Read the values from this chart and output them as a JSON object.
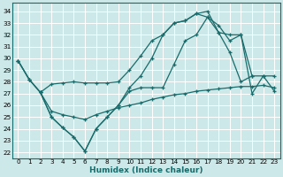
{
  "xlabel": "Humidex (Indice chaleur)",
  "bg_color": "#cce8e8",
  "grid_color": "#ffffff",
  "line_color": "#1a6b6b",
  "xlim": [
    -0.5,
    23.5
  ],
  "ylim": [
    21.5,
    34.7
  ],
  "yticks": [
    22,
    23,
    24,
    25,
    26,
    27,
    28,
    29,
    30,
    31,
    32,
    33,
    34
  ],
  "xticks": [
    0,
    1,
    2,
    3,
    4,
    5,
    6,
    7,
    8,
    9,
    10,
    11,
    12,
    13,
    14,
    15,
    16,
    17,
    18,
    19,
    20,
    21,
    22,
    23
  ],
  "series1_x": [
    0,
    1,
    2,
    3,
    4,
    5,
    6,
    7,
    8,
    9,
    10,
    11,
    12,
    13,
    14,
    15,
    16,
    17,
    18,
    19,
    20,
    21
  ],
  "series1_y": [
    29.8,
    28.2,
    27.1,
    27.8,
    27.9,
    28.0,
    27.9,
    27.9,
    27.9,
    28.0,
    29.0,
    30.2,
    31.5,
    32.0,
    33.0,
    33.2,
    33.8,
    33.5,
    32.2,
    32.0,
    32.0,
    28.5
  ],
  "series2_x": [
    0,
    1,
    2,
    3,
    4,
    5,
    6,
    7,
    8,
    9,
    10,
    11,
    12,
    13,
    14,
    15,
    16,
    17,
    18,
    19,
    20,
    21,
    22,
    23
  ],
  "series2_y": [
    29.8,
    28.2,
    27.1,
    25.0,
    24.1,
    23.3,
    22.1,
    24.0,
    25.0,
    26.0,
    27.5,
    28.5,
    30.0,
    32.0,
    33.0,
    33.2,
    33.8,
    34.0,
    32.2,
    30.5,
    28.0,
    28.5,
    28.5,
    28.5
  ],
  "series3_x": [
    2,
    3,
    4,
    5,
    6,
    7,
    8,
    9,
    10,
    11,
    12,
    13,
    14,
    15,
    16,
    17,
    18,
    19,
    20,
    21,
    22,
    23
  ],
  "series3_y": [
    27.1,
    25.0,
    24.1,
    23.3,
    22.1,
    24.0,
    25.0,
    26.0,
    27.2,
    27.5,
    27.5,
    27.5,
    29.5,
    31.5,
    32.0,
    33.5,
    32.8,
    31.5,
    32.0,
    27.0,
    28.5,
    27.2
  ],
  "series4_x": [
    0,
    1,
    2,
    3,
    4,
    5,
    6,
    7,
    8,
    9,
    10,
    11,
    12,
    13,
    14,
    15,
    16,
    17,
    18,
    19,
    20,
    21,
    22,
    23
  ],
  "series4_y": [
    29.8,
    28.2,
    27.1,
    25.5,
    25.2,
    25.0,
    24.8,
    25.2,
    25.5,
    25.8,
    26.0,
    26.2,
    26.5,
    26.7,
    26.9,
    27.0,
    27.2,
    27.3,
    27.4,
    27.5,
    27.6,
    27.6,
    27.7,
    27.5
  ]
}
